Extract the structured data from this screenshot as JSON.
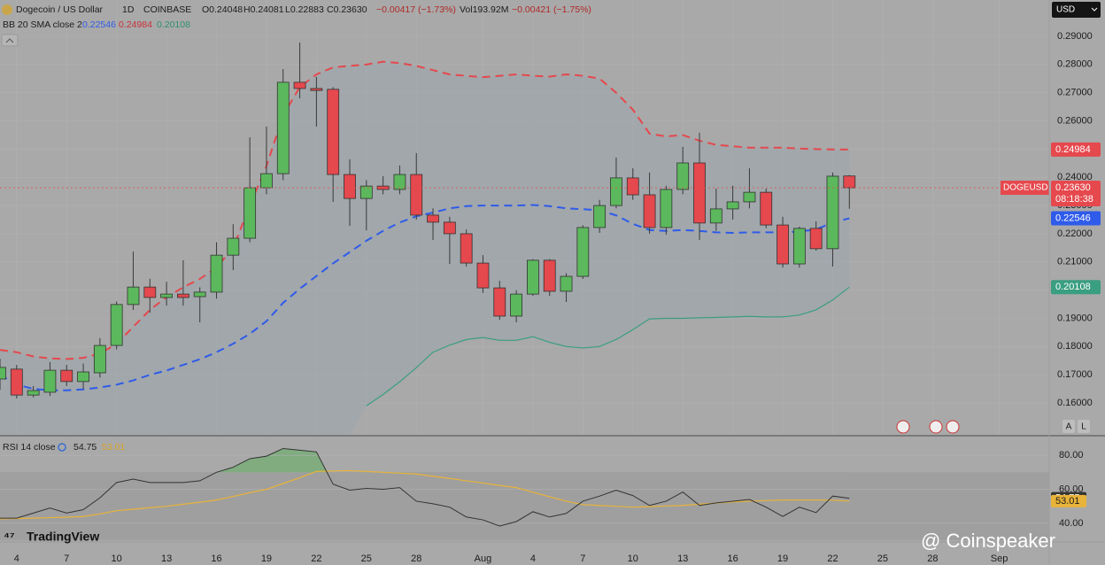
{
  "chart_data": {
    "type": "candlestick",
    "title": "Dogecoin / US Dollar",
    "interval": "1D",
    "exchange": "COINBASE",
    "ohlc_header": [
      "O0.24048",
      "H0.24081",
      "L0.22883",
      "C0.23630",
      "−0.00417 (−1.73%)"
    ],
    "volume": "Vol193.92M",
    "volume_change": "−0.00421 (−1.75%)",
    "currency": "USD",
    "up_color": "#5cb85c",
    "down_color": "#e5484d",
    "x": [
      "07-03",
      "07-04",
      "07-05",
      "07-06",
      "07-07",
      "07-08",
      "07-09",
      "07-10",
      "07-11",
      "07-12",
      "07-13",
      "07-14",
      "07-15",
      "07-16",
      "07-17",
      "07-18",
      "07-19",
      "07-20",
      "07-21",
      "07-22",
      "07-23",
      "07-24",
      "07-25",
      "07-26",
      "07-27",
      "07-28",
      "07-29",
      "07-30",
      "07-31",
      "08-01",
      "08-02",
      "08-03",
      "08-04",
      "08-05",
      "08-06",
      "08-07",
      "08-08",
      "08-09",
      "08-10",
      "08-11",
      "08-12",
      "08-13",
      "08-14",
      "08-15",
      "08-16",
      "08-17",
      "08-18",
      "08-19",
      "08-20",
      "08-21",
      "08-22",
      "08-23"
    ],
    "open": [
      0.1685,
      0.172,
      0.1628,
      0.1638,
      0.1716,
      0.1676,
      0.1707,
      0.1804,
      0.1949,
      0.2011,
      0.1974,
      0.1986,
      0.1977,
      0.1993,
      0.2124,
      0.2184,
      0.2363,
      0.2413,
      0.2737,
      0.2715,
      0.2712,
      0.241,
      0.2325,
      0.2369,
      0.2357,
      0.241,
      0.2266,
      0.2241,
      0.22,
      0.2096,
      0.2008,
      0.1908,
      0.1986,
      0.2106,
      0.1996,
      0.2049,
      0.2222,
      0.23,
      0.2398,
      0.2338,
      0.2222,
      0.2357,
      0.2451,
      0.2238,
      0.2288,
      0.2313,
      0.2347,
      0.2231,
      0.2093,
      0.2219,
      0.2147,
      0.24048
    ],
    "high": [
      0.1757,
      0.1735,
      0.166,
      0.1745,
      0.1735,
      0.174,
      0.183,
      0.196,
      0.2137,
      0.204,
      0.203,
      0.2106,
      0.201,
      0.217,
      0.2234,
      0.2542,
      0.258,
      0.2784,
      0.2878,
      0.2756,
      0.272,
      0.2464,
      0.239,
      0.2404,
      0.2442,
      0.2486,
      0.229,
      0.226,
      0.2215,
      0.2124,
      0.2033,
      0.2,
      0.211,
      0.211,
      0.206,
      0.223,
      0.232,
      0.247,
      0.2432,
      0.2417,
      0.237,
      0.2508,
      0.2558,
      0.236,
      0.237,
      0.2432,
      0.236,
      0.226,
      0.2225,
      0.2244,
      0.2417,
      0.24081
    ],
    "low": [
      0.1647,
      0.1616,
      0.162,
      0.1625,
      0.166,
      0.165,
      0.169,
      0.179,
      0.193,
      0.192,
      0.1945,
      0.1945,
      0.1886,
      0.197,
      0.2071,
      0.217,
      0.234,
      0.239,
      0.268,
      0.258,
      0.2313,
      0.2228,
      0.2212,
      0.234,
      0.234,
      0.225,
      0.2178,
      0.2093,
      0.2084,
      0.199,
      0.1895,
      0.1886,
      0.198,
      0.198,
      0.1958,
      0.204,
      0.2203,
      0.229,
      0.232,
      0.22,
      0.2197,
      0.234,
      0.2178,
      0.221,
      0.225,
      0.229,
      0.222,
      0.208,
      0.208,
      0.214,
      0.2084,
      0.22883
    ],
    "close": [
      0.1726,
      0.1628,
      0.1644,
      0.1716,
      0.1676,
      0.171,
      0.1804,
      0.1949,
      0.2011,
      0.1974,
      0.1986,
      0.1974,
      0.1993,
      0.2124,
      0.2184,
      0.2363,
      0.2413,
      0.2737,
      0.2715,
      0.2708,
      0.241,
      0.2325,
      0.2369,
      0.2357,
      0.241,
      0.2266,
      0.2241,
      0.22,
      0.2096,
      0.2008,
      0.1908,
      0.1986,
      0.2106,
      0.1996,
      0.2049,
      0.2222,
      0.23,
      0.2398,
      0.2338,
      0.2222,
      0.2357,
      0.2451,
      0.2238,
      0.2288,
      0.2313,
      0.2347,
      0.2231,
      0.2093,
      0.2219,
      0.2147,
      0.2404,
      0.2363
    ],
    "bands": {
      "label": "BB 20 SMA close 2",
      "middle": {
        "color": "#2f5bea",
        "values": [
          0.17,
          0.1665,
          0.165,
          0.1645,
          0.1645,
          0.1648,
          0.1655,
          0.1665,
          0.168,
          0.17,
          0.1715,
          0.1735,
          0.1755,
          0.178,
          0.181,
          0.1845,
          0.189,
          0.1955,
          0.2005,
          0.205,
          0.2095,
          0.2135,
          0.2175,
          0.221,
          0.224,
          0.2262,
          0.2275,
          0.229,
          0.2298,
          0.23,
          0.23,
          0.23,
          0.2302,
          0.2298,
          0.229,
          0.2287,
          0.2283,
          0.2265,
          0.2235,
          0.2213,
          0.221,
          0.2213,
          0.221,
          0.2205,
          0.2203,
          0.2205,
          0.2205,
          0.2205,
          0.2208,
          0.2215,
          0.224,
          0.22546
        ]
      },
      "upper": {
        "color": "#e5484d",
        "values": [
          0.1788,
          0.178,
          0.1765,
          0.1758,
          0.1756,
          0.176,
          0.1775,
          0.181,
          0.187,
          0.193,
          0.1975,
          0.201,
          0.204,
          0.208,
          0.215,
          0.23,
          0.244,
          0.262,
          0.272,
          0.2765,
          0.279,
          0.2795,
          0.28,
          0.281,
          0.2805,
          0.2795,
          0.278,
          0.2765,
          0.276,
          0.2755,
          0.276,
          0.2765,
          0.276,
          0.2757,
          0.2765,
          0.276,
          0.275,
          0.27,
          0.264,
          0.2555,
          0.2545,
          0.255,
          0.253,
          0.2515,
          0.251,
          0.2505,
          0.2505,
          0.2505,
          0.2502,
          0.25,
          0.2499,
          0.24984
        ]
      },
      "lower": {
        "color": "#3a9e80",
        "values": [
          null,
          null,
          null,
          null,
          null,
          null,
          null,
          null,
          null,
          null,
          null,
          null,
          null,
          null,
          null,
          null,
          null,
          null,
          null,
          null,
          null,
          null,
          0.159,
          0.163,
          0.1675,
          0.1725,
          0.178,
          0.1805,
          0.1825,
          0.1832,
          0.1822,
          0.1822,
          0.1835,
          0.1815,
          0.18,
          0.1795,
          0.18,
          0.1825,
          0.186,
          0.1898,
          0.19,
          0.19,
          0.1902,
          0.1903,
          0.1905,
          0.1907,
          0.1905,
          0.1905,
          0.1912,
          0.193,
          0.1965,
          0.20108
        ]
      }
    },
    "price_tag": {
      "symbol": "DOGEUSD",
      "price": "0.23630",
      "countdown": "08:18:38"
    },
    "xlim": [
      "07-03",
      "09-04"
    ],
    "xticks": [
      {
        "value": "07-04",
        "label": "4"
      },
      {
        "value": "07-07",
        "label": "7"
      },
      {
        "value": "07-10",
        "label": "10"
      },
      {
        "value": "07-13",
        "label": "13"
      },
      {
        "value": "07-16",
        "label": "16"
      },
      {
        "value": "07-19",
        "label": "19"
      },
      {
        "value": "07-22",
        "label": "22"
      },
      {
        "value": "07-25",
        "label": "25"
      },
      {
        "value": "07-28",
        "label": "28"
      },
      {
        "value": "08-01",
        "label": "Aug"
      },
      {
        "value": "08-04",
        "label": "4"
      },
      {
        "value": "08-07",
        "label": "7"
      },
      {
        "value": "08-10",
        "label": "10"
      },
      {
        "value": "08-13",
        "label": "13"
      },
      {
        "value": "08-16",
        "label": "16"
      },
      {
        "value": "08-19",
        "label": "19"
      },
      {
        "value": "08-22",
        "label": "22"
      },
      {
        "value": "08-25",
        "label": "25"
      },
      {
        "value": "08-28",
        "label": "28"
      },
      {
        "value": "09-01",
        "label": "Sep"
      }
    ],
    "ylim": [
      0.14871,
      0.30287
    ],
    "yticks": [
      {
        "value": 0.16,
        "label": "0.16000"
      },
      {
        "value": 0.17,
        "label": "0.17000"
      },
      {
        "value": 0.18,
        "label": "0.18000"
      },
      {
        "value": 0.19,
        "label": "0.19000"
      },
      {
        "value": 0.2,
        "label": "0.20000"
      },
      {
        "value": 0.21,
        "label": "0.21000"
      },
      {
        "value": 0.22,
        "label": "0.22000"
      },
      {
        "value": 0.23,
        "label": "0.23000"
      },
      {
        "value": 0.24,
        "label": "0.24000"
      },
      {
        "value": 0.25,
        "label": "0.25000"
      },
      {
        "value": 0.26,
        "label": "0.26000"
      },
      {
        "value": 0.27,
        "label": "0.27000"
      },
      {
        "value": 0.28,
        "label": "0.28000"
      },
      {
        "value": 0.29,
        "label": "0.29000"
      }
    ],
    "grid": true,
    "rsi": {
      "label": "RSI 14 close",
      "series": [
        {
          "color": "#333333",
          "values": [
            43,
            43,
            46,
            49,
            46,
            48,
            55,
            64,
            66,
            64,
            64,
            64,
            65,
            70,
            73,
            78,
            79.5,
            84,
            83,
            82,
            63,
            59.5,
            60.5,
            60,
            61,
            53,
            51.5,
            49.5,
            43.7,
            42,
            38.4,
            41,
            46.8,
            43.7,
            45.8,
            53,
            56,
            59.5,
            56.3,
            50.5,
            53,
            58.4,
            50.5,
            52,
            53,
            54,
            49.5,
            44,
            49.5,
            46.3,
            56,
            54.75
          ]
        },
        {
          "color": "#e8b339",
          "values": [
            42.6,
            42.8,
            43.0,
            43.3,
            43.6,
            44.0,
            45.5,
            47.4,
            48.3,
            49.2,
            50.0,
            51.2,
            52.4,
            53.7,
            55.8,
            58.0,
            60.0,
            63.4,
            66.8,
            70.5,
            70.8,
            71.0,
            70.5,
            70.0,
            69.5,
            69.0,
            67.7,
            66.4,
            65.0,
            63.7,
            62.3,
            61.0,
            58.3,
            55.6,
            53.0,
            51.0,
            50.5,
            50.0,
            49.5,
            49.8,
            50.2,
            50.5,
            51.2,
            51.9,
            52.6,
            53.0,
            53.4,
            53.7,
            53.7,
            53.7,
            53.6,
            53.01
          ]
        }
      ],
      "overbought": 70,
      "oversold": 30,
      "ylim": [
        29,
        90.5
      ],
      "yticks": [
        {
          "value": 80,
          "label": "80.00"
        },
        {
          "value": 60,
          "label": "60.00"
        },
        {
          "value": 40,
          "label": "40.00"
        }
      ]
    }
  },
  "ui": {
    "logo": "TradingView",
    "watermark": "@ Coinspeaker",
    "buttons": [
      "A",
      "L"
    ]
  }
}
